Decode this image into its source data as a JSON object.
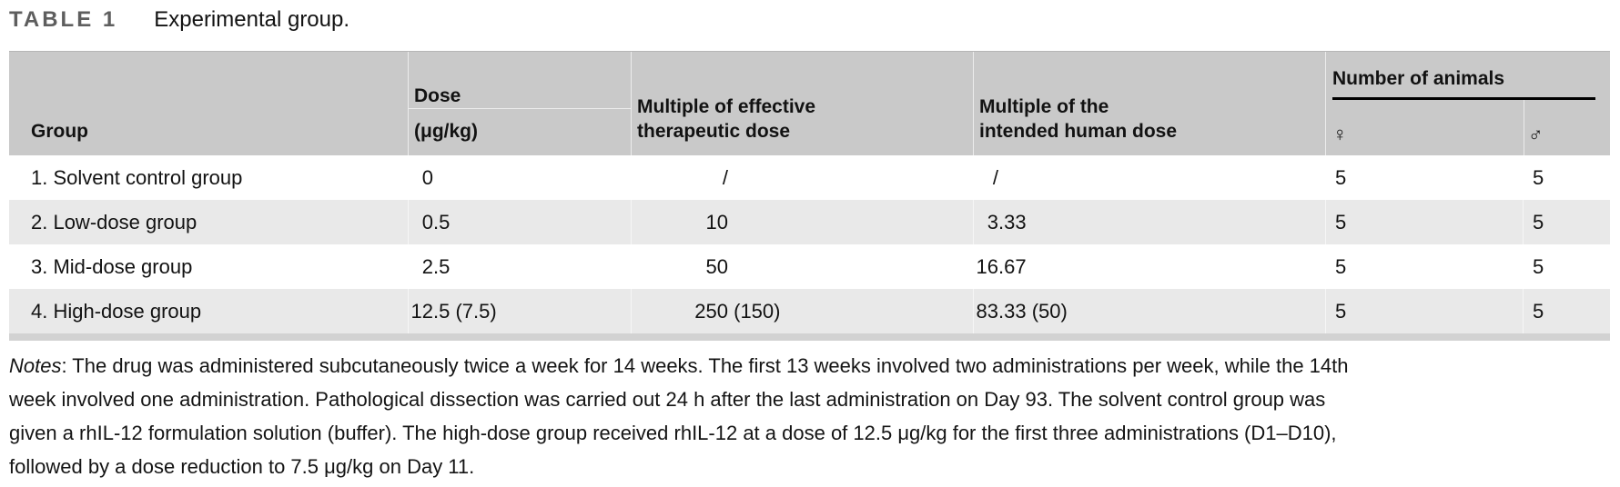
{
  "title": {
    "label": "TABLE 1",
    "caption": "Experimental group."
  },
  "colors": {
    "header_bg": "#c9c9c9",
    "row_alt_bg": "#e9e9e9",
    "bottom_bar": "#d2d2d2",
    "title_gray": "#5e5e5e"
  },
  "table": {
    "headers": {
      "group": "Group",
      "dose_line1": "Dose",
      "dose_line2": "(μg/kg)",
      "mult_effective_lines": [
        "Multiple of effective",
        "therapeutic dose"
      ],
      "mult_human_lines": [
        "Multiple of the",
        "intended human dose"
      ],
      "animals": "Number of animals",
      "female_symbol": "♀",
      "male_symbol": "♂"
    },
    "rows": [
      {
        "group": "1. Solvent control group",
        "dose": "0",
        "mult_effective": "/",
        "mult_human": "/",
        "female": "5",
        "male": "5"
      },
      {
        "group": "2. Low-dose group",
        "dose": "0.5",
        "mult_effective": "10",
        "mult_human": "3.33",
        "female": "5",
        "male": "5"
      },
      {
        "group": "3. Mid-dose group",
        "dose": "2.5",
        "mult_effective": "50",
        "mult_human": "16.67",
        "female": "5",
        "male": "5"
      },
      {
        "group": "4. High-dose group",
        "dose": "12.5 (7.5)",
        "mult_effective": "250 (150)",
        "mult_human": "83.33 (50)",
        "female": "5",
        "male": "5"
      }
    ]
  },
  "notes": {
    "label": "Notes",
    "lines": [
      ": The drug was administered subcutaneously twice a week for 14 weeks. The first 13 weeks involved two administrations per week, while the 14th",
      "week involved one administration. Pathological dissection was carried out 24 h after the last administration on Day 93. The solvent control group was",
      "given a rhIL-12 formulation solution (buffer). The high-dose group received rhIL-12 at a dose of 12.5 μg/kg for the first three administrations (D1–D10),",
      "followed by a dose reduction to 7.5 μg/kg on Day 11."
    ]
  }
}
